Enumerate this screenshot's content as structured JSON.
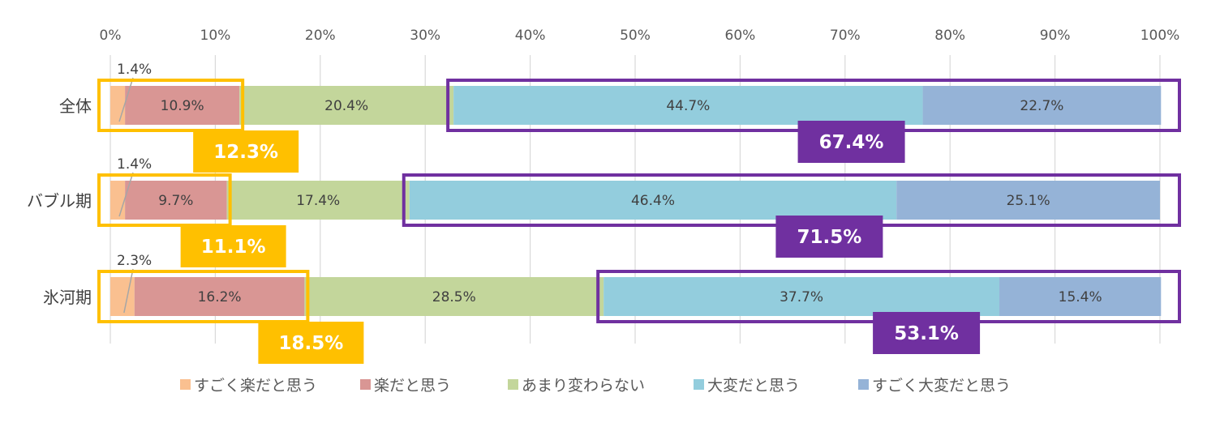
{
  "chart_data": {
    "type": "bar",
    "orientation": "horizontal",
    "stacked": "percent",
    "categories": [
      "全体",
      "バブル期",
      "氷河期"
    ],
    "series": [
      {
        "name": "すごく楽だと思う",
        "color": "#FAC090",
        "values": [
          1.4,
          1.4,
          2.3
        ],
        "labels": [
          "1.4%",
          "1.4%",
          "2.3%"
        ]
      },
      {
        "name": "楽だと思う",
        "color": "#D99694",
        "values": [
          10.9,
          9.7,
          16.2
        ],
        "labels": [
          "10.9%",
          "9.7%",
          "16.2%"
        ]
      },
      {
        "name": "あまり変わらない",
        "color": "#C3D69B",
        "values": [
          20.4,
          17.4,
          28.5
        ],
        "labels": [
          "20.4%",
          "17.4%",
          "28.5%"
        ]
      },
      {
        "name": "大変だと思う",
        "color": "#93CDDD",
        "values": [
          44.7,
          46.4,
          37.7
        ],
        "labels": [
          "44.7%",
          "46.4%",
          "37.7%"
        ]
      },
      {
        "name": "すごく大変だと思う",
        "color": "#95B3D7",
        "values": [
          22.7,
          25.1,
          15.4
        ],
        "labels": [
          "22.7%",
          "25.1%",
          "15.4%"
        ]
      }
    ],
    "xlim": [
      0,
      100
    ],
    "xticks": [
      "0%",
      "10%",
      "20%",
      "30%",
      "40%",
      "50%",
      "60%",
      "70%",
      "80%",
      "90%",
      "100%"
    ],
    "grid": true,
    "legend": "bottom",
    "callouts": {
      "easy": {
        "color": "#FFC000",
        "values": [
          "12.3%",
          "11.1%",
          "18.5%"
        ]
      },
      "hard": {
        "color": "#7030A0",
        "values": [
          "67.4%",
          "71.5%",
          "53.1%"
        ]
      }
    }
  }
}
